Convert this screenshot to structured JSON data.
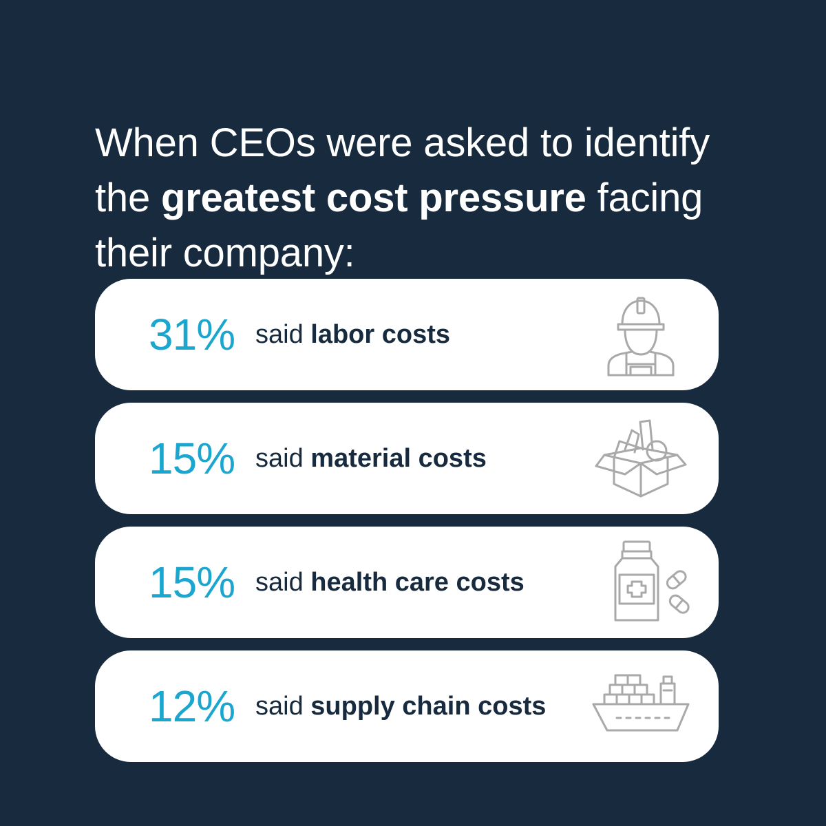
{
  "colors": {
    "background": "#172a3e",
    "accent": "#1aa6cf",
    "card": "#ffffff",
    "text_dark": "#172a3e",
    "icon": "#a9a9a9"
  },
  "headline": {
    "part1": "When CEOs were asked to identify the ",
    "emphasis": "greatest cost pressure",
    "part2": " facing their company:"
  },
  "items": [
    {
      "percent": "31%",
      "lead": "said ",
      "topic": "labor costs",
      "icon": "construction-worker-icon"
    },
    {
      "percent": "15%",
      "lead": "said ",
      "topic": "material costs",
      "icon": "open-box-icon"
    },
    {
      "percent": "15%",
      "lead": "said ",
      "topic": "health care costs",
      "icon": "medicine-bottle-pills-icon"
    },
    {
      "percent": "12%",
      "lead": "said ",
      "topic": "supply chain costs",
      "icon": "cargo-ship-icon"
    }
  ]
}
